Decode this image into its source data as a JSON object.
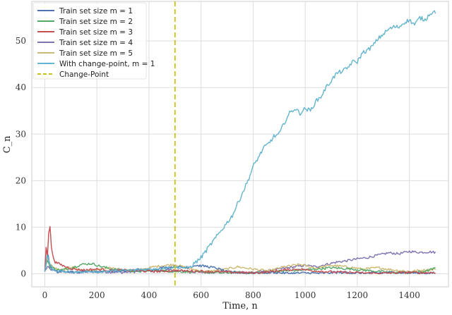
{
  "chart_data": {
    "type": "line",
    "xlabel": "Time, n",
    "ylabel": "C_n",
    "xlim": [
      -50,
      1550
    ],
    "ylim": [
      -2.8,
      58.5
    ],
    "xticks": [
      0,
      200,
      400,
      600,
      800,
      1000,
      1200,
      1400
    ],
    "yticks": [
      0,
      10,
      20,
      30,
      40,
      50
    ],
    "grid": true,
    "legend_position": "top-left",
    "series": [
      {
        "name": "Train set size m = 1",
        "color": "#4c72b0",
        "x": [
          0,
          10,
          20,
          30,
          50,
          80,
          120,
          160,
          200,
          250,
          300,
          350,
          400,
          450,
          500,
          540,
          580,
          620,
          660,
          700,
          760,
          820,
          880,
          940,
          1000,
          1060,
          1120,
          1180,
          1240,
          1300,
          1360,
          1420,
          1480,
          1500
        ],
        "y": [
          0.5,
          4.5,
          2.0,
          0.8,
          0.4,
          0.6,
          0.3,
          0.5,
          0.4,
          0.6,
          0.5,
          0.9,
          0.8,
          1.3,
          1.5,
          1.3,
          1.8,
          1.6,
          1.2,
          0.4,
          0.3,
          0.2,
          0.3,
          0.1,
          0.2,
          0.1,
          0.3,
          0.2,
          0.1,
          0.2,
          0.3,
          0.2,
          0.1,
          0.2
        ]
      },
      {
        "name": "Train set size m = 2",
        "color": "#55a868",
        "x": [
          0,
          10,
          20,
          40,
          60,
          100,
          140,
          180,
          220,
          260,
          300,
          340,
          380,
          420,
          460,
          500,
          560,
          620,
          680,
          740,
          800,
          860,
          920,
          980,
          1040,
          1100,
          1160,
          1220,
          1280,
          1340,
          1400,
          1460,
          1500
        ],
        "y": [
          0.5,
          3.0,
          1.5,
          1.0,
          0.8,
          1.2,
          2.0,
          2.2,
          1.5,
          1.0,
          0.8,
          0.6,
          0.5,
          0.7,
          0.6,
          0.5,
          0.4,
          0.3,
          0.2,
          0.3,
          0.2,
          0.4,
          0.6,
          0.8,
          1.0,
          1.3,
          1.1,
          0.8,
          0.5,
          0.3,
          0.2,
          0.5,
          1.2
        ]
      },
      {
        "name": "Train set size m = 3",
        "color": "#c44e52",
        "x": [
          0,
          5,
          10,
          15,
          20,
          25,
          30,
          40,
          60,
          80,
          110,
          150,
          200,
          260,
          320,
          380,
          440,
          500,
          560,
          620,
          680,
          740,
          800,
          860,
          920,
          980,
          1040,
          1100,
          1160,
          1220,
          1280,
          1340,
          1400,
          1460,
          1500
        ],
        "y": [
          0.5,
          5.8,
          3.5,
          9.0,
          10.2,
          6.0,
          4.0,
          2.5,
          2.0,
          1.5,
          1.0,
          0.8,
          1.0,
          0.7,
          0.8,
          0.6,
          0.5,
          0.7,
          0.6,
          0.5,
          0.4,
          0.3,
          0.2,
          0.4,
          0.8,
          1.0,
          0.6,
          0.4,
          0.3,
          0.2,
          0.1,
          0.2,
          0.3,
          0.2,
          0.3
        ]
      },
      {
        "name": "Train set size m = 4",
        "color": "#8172b2",
        "x": [
          0,
          10,
          20,
          40,
          80,
          120,
          180,
          240,
          300,
          360,
          420,
          480,
          540,
          600,
          660,
          720,
          780,
          840,
          900,
          960,
          1000,
          1040,
          1080,
          1120,
          1160,
          1200,
          1240,
          1280,
          1320,
          1360,
          1400,
          1440,
          1480,
          1500
        ],
        "y": [
          0.5,
          1.5,
          1.0,
          0.6,
          0.4,
          0.3,
          0.5,
          0.4,
          0.3,
          0.5,
          0.6,
          0.8,
          0.5,
          0.3,
          0.4,
          0.3,
          0.2,
          0.5,
          1.0,
          1.5,
          1.8,
          1.5,
          2.0,
          2.5,
          2.8,
          3.2,
          3.5,
          4.0,
          4.5,
          4.3,
          4.8,
          4.6,
          4.7,
          4.6
        ]
      },
      {
        "name": "Train set size m = 5",
        "color": "#ccb974",
        "x": [
          0,
          10,
          20,
          40,
          70,
          100,
          140,
          180,
          220,
          260,
          300,
          340,
          380,
          420,
          460,
          500,
          560,
          620,
          680,
          740,
          800,
          860,
          920,
          980,
          1040,
          1100,
          1160,
          1220,
          1280,
          1340,
          1400,
          1460,
          1500
        ],
        "y": [
          0.5,
          3.5,
          2.0,
          1.2,
          0.8,
          1.5,
          0.8,
          0.6,
          1.0,
          1.2,
          0.8,
          0.6,
          1.0,
          1.5,
          1.8,
          2.0,
          1.0,
          0.5,
          0.8,
          1.5,
          1.0,
          0.6,
          1.5,
          2.0,
          1.2,
          1.8,
          1.5,
          1.0,
          1.3,
          0.8,
          0.5,
          0.8,
          1.0
        ]
      },
      {
        "name": "With change-point, m = 1",
        "color": "#64b5cd",
        "x": [
          0,
          10,
          20,
          30,
          50,
          80,
          120,
          160,
          200,
          250,
          300,
          350,
          400,
          450,
          500,
          540,
          560,
          580,
          600,
          620,
          640,
          660,
          680,
          700,
          720,
          740,
          760,
          780,
          800,
          820,
          840,
          860,
          880,
          900,
          920,
          940,
          960,
          980,
          1000,
          1020,
          1040,
          1060,
          1080,
          1100,
          1120,
          1140,
          1160,
          1180,
          1200,
          1220,
          1240,
          1260,
          1280,
          1300,
          1320,
          1340,
          1360,
          1380,
          1400,
          1420,
          1440,
          1460,
          1480,
          1500
        ],
        "y": [
          0.5,
          4.0,
          2.0,
          1.0,
          0.6,
          0.4,
          0.3,
          0.5,
          0.4,
          0.6,
          0.7,
          0.8,
          1.0,
          1.2,
          1.4,
          1.3,
          1.5,
          2.5,
          3.5,
          5.0,
          6.5,
          8.0,
          9.5,
          11.0,
          12.5,
          15.0,
          17.5,
          20.0,
          23.0,
          25.0,
          27.0,
          28.0,
          29.5,
          30.0,
          32.5,
          34.5,
          35.5,
          34.5,
          35.5,
          35.0,
          37.0,
          38.0,
          40.0,
          41.5,
          43.0,
          43.5,
          44.0,
          45.5,
          45.5,
          47.5,
          48.0,
          49.0,
          50.5,
          51.5,
          52.5,
          53.0,
          53.0,
          54.0,
          54.5,
          53.5,
          55.0,
          54.5,
          56.0,
          56.3
        ]
      }
    ],
    "change_point": {
      "name": "Change-Point",
      "x": 500,
      "color": "#c9c11a"
    }
  }
}
